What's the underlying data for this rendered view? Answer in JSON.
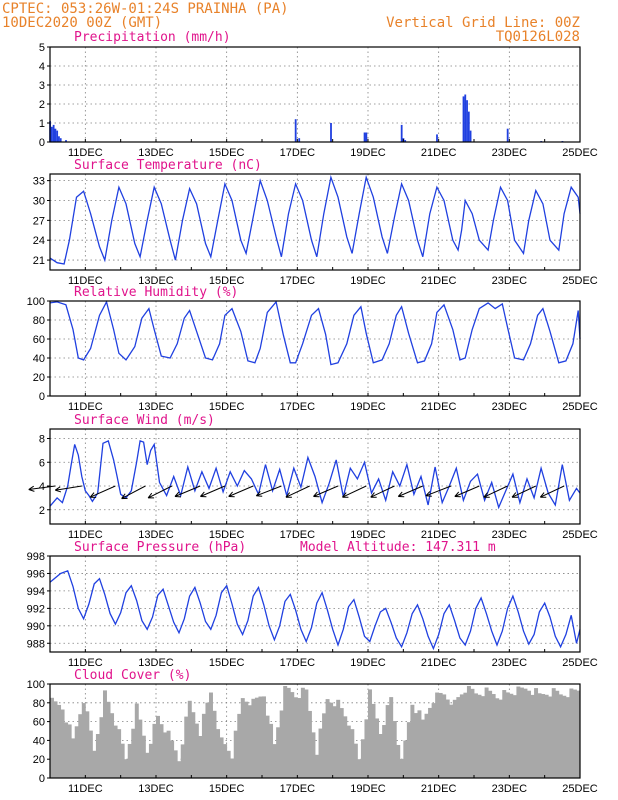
{
  "header": {
    "left_line1": "CPTEC:   053:26W-01:24S  PRAINHA (PA)",
    "left_line2": "10DEC2020 00Z (GMT)",
    "right_line1": "Vertical Grid Line: 00Z",
    "right_line2": "TQ0126L028"
  },
  "colors": {
    "header": "#e8822a",
    "title": "#e0148c",
    "series": "#2040e0",
    "wind_arrow": "#000000",
    "cloud": "#a8a8a8"
  },
  "chart_data": [
    {
      "type": "bar",
      "title": "Precipitation (mm/h)",
      "x_tick_labels": [
        "11DEC",
        "13DEC",
        "15DEC",
        "17DEC",
        "19DEC",
        "21DEC",
        "23DEC",
        "25DEC"
      ],
      "x_tick_days": [
        11,
        13,
        15,
        17,
        19,
        21,
        23,
        25
      ],
      "xlim": [
        10,
        25
      ],
      "ylim": [
        0,
        5
      ],
      "y_ticks": [
        0,
        1,
        2,
        3,
        4,
        5
      ],
      "grid": true,
      "x": [
        10.0,
        10.05,
        10.1,
        10.15,
        10.2,
        10.25,
        10.3,
        10.45,
        16.95,
        17.05,
        17.95,
        18.9,
        18.95,
        19.95,
        20.0,
        20.05,
        20.95,
        21.7,
        21.75,
        21.8,
        21.85,
        21.9,
        22.95,
        23.9,
        24.5
      ],
      "values": [
        1.1,
        0.8,
        0.9,
        0.7,
        0.6,
        0.3,
        0.2,
        0.1,
        1.2,
        0.2,
        1.0,
        0.5,
        0.5,
        0.9,
        0.2,
        0.1,
        0.4,
        2.4,
        2.5,
        2.2,
        1.6,
        0.6,
        0.7,
        0.05,
        0.05
      ]
    },
    {
      "type": "line",
      "title": "Surface Temperature (nC)",
      "x_tick_labels": [
        "11DEC",
        "13DEC",
        "15DEC",
        "17DEC",
        "19DEC",
        "21DEC",
        "23DEC",
        "25DEC"
      ],
      "x_tick_days": [
        11,
        13,
        15,
        17,
        19,
        21,
        23,
        25
      ],
      "xlim": [
        10,
        25
      ],
      "ylim": [
        19.5,
        34
      ],
      "y_ticks": [
        21,
        24,
        27,
        30,
        33
      ],
      "grid": true,
      "x": [
        10.0,
        10.2,
        10.4,
        10.55,
        10.75,
        10.95,
        11.15,
        11.4,
        11.55,
        11.75,
        11.95,
        12.15,
        12.4,
        12.55,
        12.75,
        12.95,
        13.15,
        13.4,
        13.55,
        13.75,
        13.95,
        14.15,
        14.4,
        14.55,
        14.75,
        14.95,
        15.15,
        15.4,
        15.55,
        15.75,
        15.95,
        16.15,
        16.4,
        16.55,
        16.75,
        16.95,
        17.15,
        17.4,
        17.55,
        17.75,
        17.95,
        18.15,
        18.4,
        18.55,
        18.75,
        18.95,
        19.15,
        19.4,
        19.55,
        19.75,
        19.95,
        20.15,
        20.4,
        20.55,
        20.75,
        20.95,
        21.15,
        21.4,
        21.55,
        21.65,
        21.75,
        21.95,
        22.15,
        22.4,
        22.55,
        22.75,
        22.95,
        23.15,
        23.4,
        23.55,
        23.75,
        23.95,
        24.15,
        24.4,
        24.55,
        24.75,
        24.95,
        25.0
      ],
      "series": [
        {
          "values": [
            21.3,
            20.6,
            20.4,
            24.0,
            30.5,
            31.4,
            28.0,
            23.0,
            21.0,
            27.0,
            32.0,
            29.5,
            23.5,
            21.5,
            27.0,
            32.0,
            29.5,
            24.0,
            21.0,
            27.0,
            31.8,
            29.5,
            23.5,
            21.5,
            27.0,
            32.5,
            30.0,
            24.0,
            22.0,
            27.5,
            33.0,
            30.0,
            24.5,
            21.5,
            28.0,
            32.5,
            30.0,
            24.0,
            21.5,
            28.0,
            33.5,
            30.5,
            24.5,
            22.0,
            28.0,
            33.5,
            30.5,
            24.5,
            22.0,
            27.5,
            32.5,
            30.0,
            24.0,
            21.5,
            28.0,
            32.0,
            30.0,
            24.0,
            22.5,
            25.5,
            30.0,
            28.0,
            24.0,
            22.5,
            27.0,
            32.0,
            30.0,
            24.0,
            22.0,
            27.0,
            31.5,
            29.5,
            24.0,
            22.5,
            28.0,
            32.0,
            30.5,
            28.0
          ]
        }
      ]
    },
    {
      "type": "line",
      "title": "Relative Humidity (%)",
      "x_tick_labels": [
        "11DEC",
        "13DEC",
        "15DEC",
        "17DEC",
        "19DEC",
        "21DEC",
        "23DEC",
        "25DEC"
      ],
      "x_tick_days": [
        11,
        13,
        15,
        17,
        19,
        21,
        23,
        25
      ],
      "xlim": [
        10,
        25
      ],
      "ylim": [
        0,
        100
      ],
      "y_ticks": [
        0,
        20,
        40,
        60,
        80,
        100
      ],
      "grid": true,
      "x": [
        10.0,
        10.2,
        10.45,
        10.65,
        10.8,
        10.95,
        11.15,
        11.4,
        11.6,
        11.8,
        11.95,
        12.15,
        12.4,
        12.6,
        12.8,
        12.95,
        13.15,
        13.4,
        13.6,
        13.8,
        13.95,
        14.15,
        14.4,
        14.6,
        14.8,
        14.95,
        15.15,
        15.4,
        15.6,
        15.8,
        15.95,
        16.15,
        16.4,
        16.6,
        16.8,
        16.95,
        17.15,
        17.4,
        17.6,
        17.8,
        17.95,
        18.15,
        18.4,
        18.6,
        18.8,
        18.95,
        19.15,
        19.4,
        19.6,
        19.8,
        19.95,
        20.15,
        20.4,
        20.6,
        20.8,
        20.95,
        21.15,
        21.4,
        21.6,
        21.75,
        21.95,
        22.15,
        22.4,
        22.6,
        22.8,
        22.95,
        23.15,
        23.4,
        23.6,
        23.8,
        23.95,
        24.15,
        24.4,
        24.6,
        24.8,
        24.95,
        25.0
      ],
      "series": [
        {
          "values": [
            98,
            99,
            96,
            70,
            40,
            38,
            50,
            85,
            99,
            70,
            45,
            38,
            52,
            82,
            92,
            70,
            42,
            40,
            55,
            82,
            90,
            68,
            40,
            38,
            55,
            85,
            92,
            68,
            37,
            35,
            50,
            88,
            99,
            65,
            35,
            35,
            55,
            85,
            92,
            65,
            33,
            35,
            55,
            85,
            94,
            66,
            35,
            38,
            55,
            85,
            94,
            66,
            35,
            37,
            55,
            88,
            96,
            70,
            38,
            40,
            70,
            92,
            98,
            92,
            97,
            72,
            40,
            38,
            55,
            85,
            92,
            68,
            35,
            37,
            55,
            90,
            60
          ]
        }
      ]
    },
    {
      "type": "line",
      "title": "Surface Wind (m/s)",
      "x_tick_labels": [
        "11DEC",
        "13DEC",
        "15DEC",
        "17DEC",
        "19DEC",
        "21DEC",
        "23DEC",
        "25DEC"
      ],
      "x_tick_days": [
        11,
        13,
        15,
        17,
        19,
        21,
        23,
        25
      ],
      "xlim": [
        10,
        25
      ],
      "ylim": [
        0.8,
        8.8
      ],
      "y_ticks": [
        2,
        4,
        6,
        8
      ],
      "grid": true,
      "x": [
        10.0,
        10.2,
        10.35,
        10.5,
        10.6,
        10.7,
        10.8,
        10.9,
        11.0,
        11.1,
        11.2,
        11.35,
        11.5,
        11.65,
        11.8,
        11.9,
        12.0,
        12.15,
        12.3,
        12.45,
        12.55,
        12.65,
        12.75,
        12.85,
        12.95,
        13.1,
        13.3,
        13.5,
        13.7,
        13.9,
        14.1,
        14.3,
        14.5,
        14.7,
        14.9,
        15.1,
        15.3,
        15.5,
        15.7,
        15.9,
        16.1,
        16.3,
        16.5,
        16.7,
        16.9,
        17.1,
        17.3,
        17.5,
        17.7,
        17.9,
        18.1,
        18.3,
        18.5,
        18.7,
        18.9,
        19.1,
        19.3,
        19.5,
        19.7,
        19.9,
        20.1,
        20.3,
        20.5,
        20.7,
        20.9,
        21.1,
        21.3,
        21.5,
        21.7,
        21.9,
        22.1,
        22.3,
        22.5,
        22.7,
        22.9,
        23.1,
        23.3,
        23.5,
        23.7,
        23.9,
        24.1,
        24.3,
        24.5,
        24.7,
        24.9,
        25.0
      ],
      "series": [
        {
          "values": [
            2.3,
            3.0,
            2.6,
            4.0,
            5.8,
            7.5,
            6.6,
            4.8,
            3.6,
            3.2,
            2.7,
            3.4,
            7.6,
            7.8,
            6.2,
            4.8,
            3.3,
            3.0,
            3.6,
            6.0,
            7.8,
            7.7,
            5.8,
            7.0,
            7.5,
            4.3,
            3.2,
            4.8,
            3.2,
            5.6,
            3.6,
            5.2,
            3.8,
            5.5,
            3.5,
            5.2,
            4.0,
            5.3,
            4.6,
            3.3,
            5.8,
            3.6,
            5.4,
            3.2,
            5.5,
            3.9,
            6.4,
            4.8,
            2.6,
            4.2,
            6.2,
            3.1,
            5.5,
            4.6,
            6.0,
            3.4,
            4.6,
            2.8,
            5.2,
            4.0,
            5.8,
            3.3,
            4.8,
            2.4,
            5.6,
            2.6,
            4.0,
            5.5,
            2.8,
            4.4,
            5.0,
            2.8,
            4.3,
            2.2,
            3.6,
            5.0,
            2.6,
            4.6,
            3.0,
            5.5,
            3.4,
            2.4,
            5.8,
            2.8,
            3.8,
            3.4
          ]
        }
      ],
      "wind_arrow_days": [
        10.15,
        10.9,
        11.85,
        12.7,
        13.45,
        14.25,
        14.95,
        15.75,
        16.55,
        17.35,
        18.15,
        18.95,
        19.75,
        20.55,
        21.35,
        22.15,
        22.95,
        23.75,
        24.55
      ],
      "wind_arrow_u": [
        -3.8,
        -3.8,
        -3.6,
        -3.4,
        -3.4,
        -3.6,
        -3.5,
        -3.5,
        -3.6,
        -3.4,
        -3.5,
        -3.4,
        -3.4,
        -3.5,
        -3.6,
        -3.5,
        -3.4,
        -3.4,
        -3.4
      ],
      "wind_arrow_v": [
        -0.5,
        -0.6,
        -1.6,
        -1.8,
        -1.7,
        -1.5,
        -1.5,
        -1.5,
        -1.4,
        -1.6,
        -1.5,
        -1.6,
        -1.6,
        -1.5,
        -1.4,
        -1.5,
        -1.6,
        -1.6,
        -1.6
      ]
    },
    {
      "type": "line",
      "title": "Surface Pressure (hPa)",
      "annotation": "Model Altitude: 147.311 m",
      "x_tick_labels": [
        "11DEC",
        "13DEC",
        "15DEC",
        "17DEC",
        "19DEC",
        "21DEC",
        "23DEC",
        "25DEC"
      ],
      "x_tick_days": [
        11,
        13,
        15,
        17,
        19,
        21,
        23,
        25
      ],
      "xlim": [
        10,
        25
      ],
      "ylim": [
        987,
        998
      ],
      "y_ticks": [
        988,
        990,
        992,
        994,
        996,
        998
      ],
      "grid": true,
      "x": [
        10.0,
        10.3,
        10.5,
        10.65,
        10.8,
        10.95,
        11.1,
        11.25,
        11.4,
        11.55,
        11.7,
        11.85,
        12.0,
        12.15,
        12.3,
        12.45,
        12.6,
        12.75,
        12.9,
        13.05,
        13.2,
        13.35,
        13.5,
        13.65,
        13.8,
        13.95,
        14.1,
        14.25,
        14.4,
        14.55,
        14.7,
        14.85,
        15.0,
        15.15,
        15.3,
        15.45,
        15.6,
        15.75,
        15.9,
        16.05,
        16.2,
        16.35,
        16.5,
        16.65,
        16.8,
        16.95,
        17.1,
        17.25,
        17.4,
        17.55,
        17.7,
        17.85,
        18.0,
        18.15,
        18.3,
        18.45,
        18.6,
        18.75,
        18.9,
        19.05,
        19.2,
        19.35,
        19.5,
        19.65,
        19.8,
        19.95,
        20.1,
        20.25,
        20.4,
        20.55,
        20.7,
        20.85,
        21.0,
        21.15,
        21.3,
        21.45,
        21.6,
        21.75,
        21.9,
        22.05,
        22.2,
        22.35,
        22.5,
        22.65,
        22.8,
        22.95,
        23.1,
        23.25,
        23.4,
        23.55,
        23.7,
        23.85,
        24.0,
        24.15,
        24.3,
        24.45,
        24.6,
        24.75,
        24.9,
        25.0
      ],
      "series": [
        {
          "values": [
            995.0,
            996.0,
            996.3,
            994.5,
            992.0,
            990.8,
            992.5,
            994.8,
            995.4,
            993.6,
            991.4,
            990.2,
            991.5,
            993.8,
            994.6,
            992.9,
            990.6,
            989.6,
            991.0,
            993.5,
            994.2,
            992.3,
            990.4,
            989.2,
            990.8,
            993.4,
            994.4,
            992.6,
            990.5,
            989.6,
            991.2,
            993.8,
            994.6,
            992.5,
            990.2,
            989.0,
            990.6,
            993.4,
            994.4,
            992.4,
            990.0,
            988.4,
            990.0,
            992.8,
            993.6,
            991.8,
            989.6,
            988.2,
            989.8,
            992.6,
            993.8,
            991.8,
            989.6,
            987.8,
            989.6,
            992.2,
            993.0,
            991.0,
            988.8,
            988.2,
            990.0,
            991.6,
            992.0,
            990.4,
            988.6,
            987.6,
            989.2,
            991.4,
            992.4,
            990.8,
            988.8,
            987.4,
            989.0,
            991.4,
            992.4,
            990.6,
            988.6,
            987.8,
            989.4,
            992.0,
            993.2,
            991.4,
            989.4,
            987.8,
            989.4,
            992.0,
            993.4,
            991.6,
            989.4,
            987.9,
            989.0,
            991.6,
            992.6,
            991.0,
            988.8,
            987.6,
            989.0,
            991.2,
            988.0,
            989.6
          ]
        }
      ]
    },
    {
      "type": "bar",
      "title": "Cloud Cover (%)",
      "x_tick_labels": [
        "11DEC",
        "13DEC",
        "15DEC",
        "17DEC",
        "19DEC",
        "21DEC",
        "23DEC",
        "25DEC"
      ],
      "x_tick_days": [
        11,
        13,
        15,
        17,
        19,
        21,
        23,
        25
      ],
      "xlim": [
        10,
        25
      ],
      "ylim": [
        0,
        100
      ],
      "y_ticks": [
        0,
        20,
        40,
        60,
        80,
        100
      ],
      "grid": true,
      "x": [
        10.0,
        10.3,
        10.6,
        10.9,
        11.2,
        11.5,
        11.8,
        12.1,
        12.4,
        12.7,
        13.0,
        13.3,
        13.6,
        13.9,
        14.2,
        14.5,
        14.8,
        15.1,
        15.4,
        15.7,
        16.0,
        16.3,
        16.6,
        16.9,
        17.2,
        17.5,
        17.8,
        18.1,
        18.4,
        18.7,
        19.0,
        19.3,
        19.6,
        19.9,
        20.2,
        20.5,
        20.8,
        21.1,
        21.4,
        21.7,
        22.0,
        22.3,
        22.6,
        22.9,
        23.2,
        23.5,
        23.8,
        24.1,
        24.4,
        24.7,
        25.0
      ],
      "values": [
        80,
        75,
        40,
        85,
        30,
        90,
        60,
        20,
        75,
        30,
        65,
        45,
        20,
        80,
        50,
        92,
        40,
        25,
        85,
        80,
        90,
        35,
        95,
        88,
        92,
        30,
        85,
        80,
        60,
        20,
        90,
        50,
        85,
        15,
        80,
        60,
        85,
        90,
        80,
        95,
        90,
        92,
        88,
        90,
        92,
        95,
        88,
        92,
        90,
        92,
        95
      ]
    }
  ]
}
